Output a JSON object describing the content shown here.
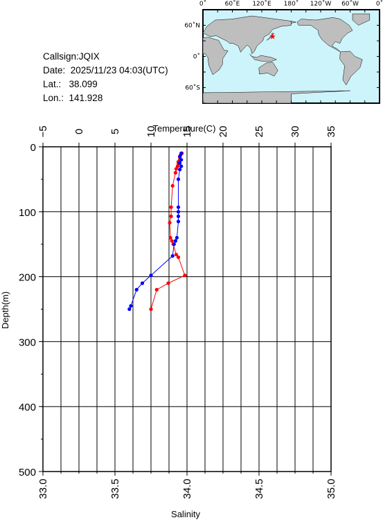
{
  "info": {
    "callsign": "Callsign:JQIX",
    "date": "Date:  2025/11/23 04:03(UTC)",
    "lat": "Lat.:   38.099",
    "lon": "Lon.:  141.928"
  },
  "map": {
    "top_labels": [
      "0˚",
      "60˚E",
      "120˚E",
      "180˚",
      "120˚W",
      "60˚W",
      "0˚"
    ],
    "side_labels": [
      "60˚N",
      "0˚",
      "60˚S"
    ],
    "ocean_color": "#cdf3fb",
    "land_color": "#bebebe",
    "marker_color": "#ff0000",
    "marker": {
      "lat": 38.099,
      "lon": 141.928
    }
  },
  "chart_data": {
    "type": "line",
    "top_axis_label": "Temperature(C)",
    "bottom_axis_label": "Salinity",
    "left_axis_label": "Depth(m)",
    "temperature_ticks": [
      "−5",
      "0",
      "5",
      "10",
      "15",
      "20",
      "25",
      "30",
      "35"
    ],
    "salinity_ticks": [
      "33.0",
      "33.5",
      "34.0",
      "34.5",
      "35.0"
    ],
    "depth_ticks": [
      "0",
      "100",
      "200",
      "300",
      "400",
      "500"
    ],
    "temperature_range": [
      -5,
      35
    ],
    "salinity_range": [
      33.0,
      35.0
    ],
    "depth_range": [
      0,
      500
    ],
    "grid": true,
    "series": [
      {
        "color": "#ff0000",
        "variable": "temperature",
        "points": [
          {
            "depth": 10,
            "value": 14.3
          },
          {
            "depth": 13,
            "value": 14.1
          },
          {
            "depth": 16,
            "value": 14.0
          },
          {
            "depth": 20,
            "value": 14.0
          },
          {
            "depth": 23,
            "value": 13.8
          },
          {
            "depth": 26,
            "value": 13.8
          },
          {
            "depth": 30,
            "value": 13.7
          },
          {
            "depth": 34,
            "value": 13.5
          },
          {
            "depth": 40,
            "value": 13.4
          },
          {
            "depth": 60,
            "value": 13.0
          },
          {
            "depth": 93,
            "value": 12.8
          },
          {
            "depth": 107,
            "value": 12.8
          },
          {
            "depth": 117,
            "value": 12.6
          },
          {
            "depth": 140,
            "value": 12.7
          },
          {
            "depth": 145,
            "value": 12.9
          },
          {
            "depth": 150,
            "value": 13.1
          },
          {
            "depth": 166,
            "value": 13.5
          },
          {
            "depth": 170,
            "value": 13.8
          },
          {
            "depth": 198,
            "value": 14.7
          },
          {
            "depth": 210,
            "value": 12.4
          },
          {
            "depth": 220,
            "value": 10.8
          },
          {
            "depth": 250,
            "value": 10.0
          }
        ]
      },
      {
        "color": "#0000ff",
        "variable": "salinity",
        "points": [
          {
            "depth": 10,
            "value": 33.96
          },
          {
            "depth": 15,
            "value": 33.95
          },
          {
            "depth": 20,
            "value": 33.96
          },
          {
            "depth": 25,
            "value": 33.95
          },
          {
            "depth": 30,
            "value": 33.96
          },
          {
            "depth": 35,
            "value": 33.95
          },
          {
            "depth": 50,
            "value": 33.94
          },
          {
            "depth": 93,
            "value": 33.94
          },
          {
            "depth": 100,
            "value": 33.94
          },
          {
            "depth": 107,
            "value": 33.94
          },
          {
            "depth": 115,
            "value": 33.94
          },
          {
            "depth": 140,
            "value": 33.93
          },
          {
            "depth": 145,
            "value": 33.92
          },
          {
            "depth": 150,
            "value": 33.91
          },
          {
            "depth": 168,
            "value": 33.9
          },
          {
            "depth": 198,
            "value": 33.75
          },
          {
            "depth": 210,
            "value": 33.69
          },
          {
            "depth": 220,
            "value": 33.65
          },
          {
            "depth": 245,
            "value": 33.61
          },
          {
            "depth": 250,
            "value": 33.6
          }
        ]
      }
    ]
  }
}
